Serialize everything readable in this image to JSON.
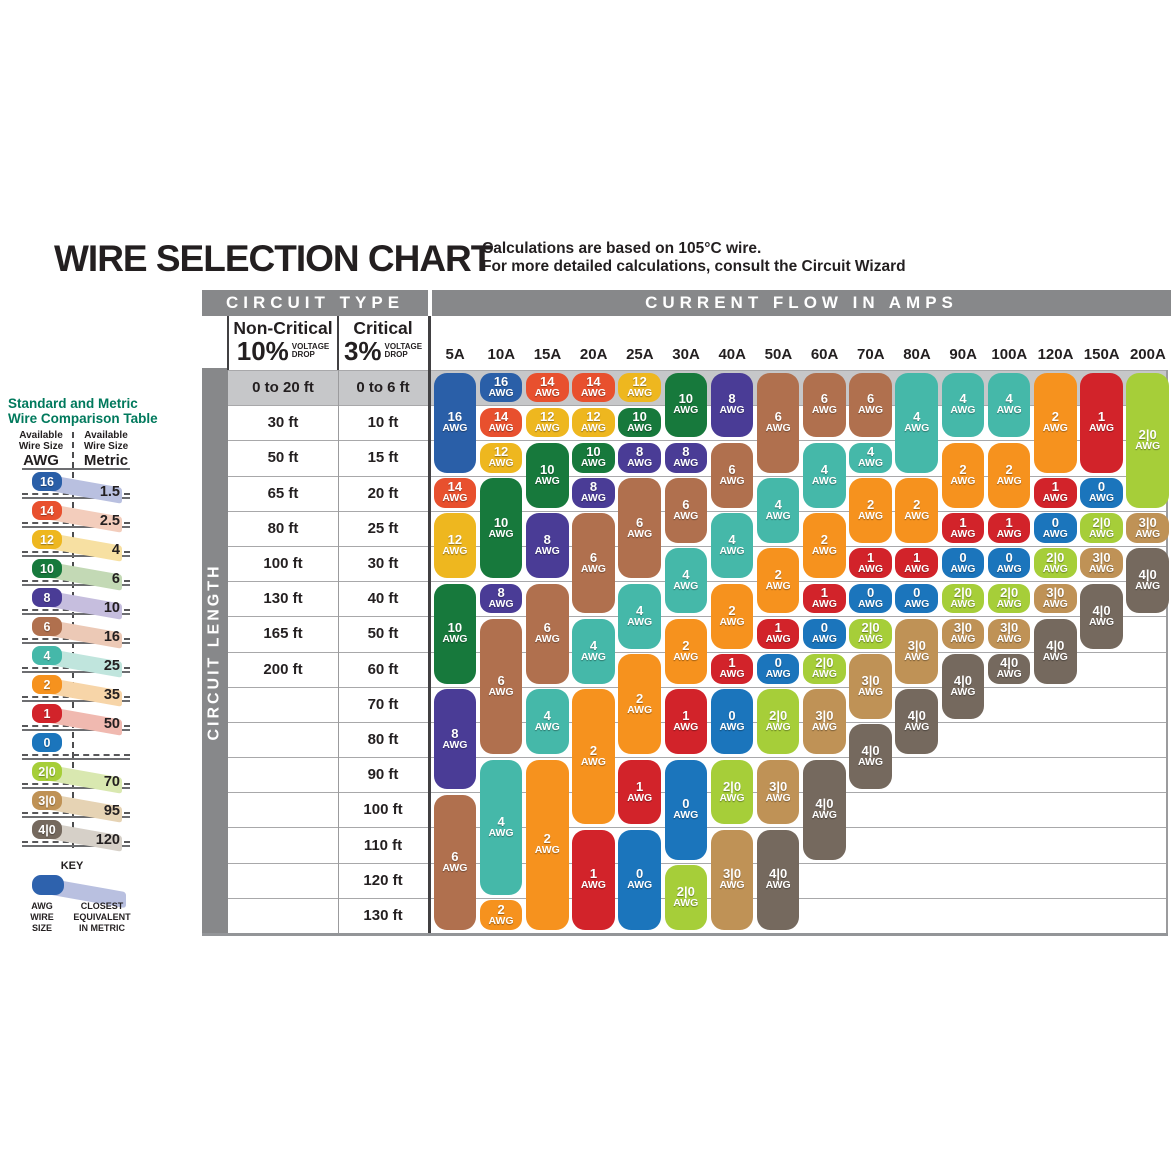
{
  "title": "WIRE SELECTION CHART",
  "subtitle_line1": "Calculations are based on 105°C wire.",
  "subtitle_line2": "For more detailed calculations, consult the Circuit Wizard",
  "headers": {
    "circuit_type": "CIRCUIT TYPE",
    "current_flow": "CURRENT FLOW IN AMPS",
    "non_critical": "Non-Critical",
    "non_critical_pct": "10%",
    "critical": "Critical",
    "critical_pct": "3%",
    "voltage_drop": [
      "VOLTAGE",
      "DROP"
    ],
    "circuit_length": "CIRCUIT LENGTH"
  },
  "colors": {
    "header_bar": "#87888a",
    "highlight_band": "#c6c7c9",
    "sidebar_title": "#00795c",
    "key_pill": "#2e62ad",
    "key_band": "#b9c0e0",
    "gauges": {
      "16": "#2a5fa8",
      "14": "#e8502e",
      "12": "#eeb71f",
      "10": "#17793c",
      "8": "#4a3c96",
      "6": "#b0704e",
      "4": "#45b8a9",
      "2": "#f6921e",
      "1": "#d2232a",
      "0": "#1b75bc",
      "2|0": "#a6ce39",
      "3|0": "#bf9256",
      "4|0": "#75695e"
    },
    "lights": {
      "16": "#b9c0e0",
      "14": "#f3cdbc",
      "12": "#f7e0a2",
      "10": "#c3d9b5",
      "8": "#c6bede",
      "6": "#ecc9b6",
      "4": "#c0e5dd",
      "2": "#f7d5a8",
      "1": "#f0b9b0",
      "2|0": "#d9e8b0",
      "3|0": "#e6d3b4",
      "4|0": "#d6d0c8"
    }
  },
  "sidebar": {
    "title_line1": "Standard and Metric",
    "title_line2": "Wire Comparison Table",
    "col1_lines": [
      "Available",
      "Wire Size"
    ],
    "col1_unit": "AWG",
    "col2_lines": [
      "Available",
      "Wire Size"
    ],
    "col2_unit": "Metric",
    "rows": [
      {
        "awg": "16",
        "metric": "1.5"
      },
      {
        "awg": "14",
        "metric": "2.5"
      },
      {
        "awg": "12",
        "metric": "4"
      },
      {
        "awg": "10",
        "metric": "6"
      },
      {
        "awg": "8",
        "metric": "10"
      },
      {
        "awg": "6",
        "metric": "16"
      },
      {
        "awg": "4",
        "metric": "25"
      },
      {
        "awg": "2",
        "metric": "35"
      },
      {
        "awg": "1",
        "metric": "50"
      },
      {
        "awg": "0",
        "metric": ""
      },
      {
        "awg": "2|0",
        "metric": "70"
      },
      {
        "awg": "3|0",
        "metric": "95"
      },
      {
        "awg": "4|0",
        "metric": "120"
      }
    ],
    "key": {
      "label": "KEY",
      "left_lines": [
        "AWG",
        "WIRE",
        "SIZE"
      ],
      "right_lines": [
        "CLOSEST",
        "EQUIVALENT",
        "IN METRIC"
      ]
    }
  },
  "chart_data": {
    "type": "table",
    "title": "WIRE SELECTION CHART",
    "xlabel": "CURRENT FLOW IN AMPS",
    "ylabel": "CIRCUIT LENGTH",
    "pill_suffix": "AWG",
    "amp_columns": [
      "5A",
      "10A",
      "15A",
      "20A",
      "25A",
      "30A",
      "40A",
      "50A",
      "60A",
      "70A",
      "80A",
      "90A",
      "100A",
      "120A",
      "150A",
      "200A"
    ],
    "rows": [
      {
        "non_critical": "0 to 20 ft",
        "critical": "0 to 6 ft",
        "highlight": true
      },
      {
        "non_critical": "30 ft",
        "critical": "10 ft"
      },
      {
        "non_critical": "50 ft",
        "critical": "15 ft"
      },
      {
        "non_critical": "65 ft",
        "critical": "20 ft"
      },
      {
        "non_critical": "80 ft",
        "critical": "25 ft"
      },
      {
        "non_critical": "100 ft",
        "critical": "30 ft"
      },
      {
        "non_critical": "130 ft",
        "critical": "40 ft"
      },
      {
        "non_critical": "165 ft",
        "critical": "50 ft"
      },
      {
        "non_critical": "200 ft",
        "critical": "60 ft"
      },
      {
        "non_critical": "",
        "critical": "70 ft"
      },
      {
        "non_critical": "",
        "critical": "80 ft"
      },
      {
        "non_critical": "",
        "critical": "90 ft"
      },
      {
        "non_critical": "",
        "critical": "100 ft"
      },
      {
        "non_critical": "",
        "critical": "110 ft"
      },
      {
        "non_critical": "",
        "critical": "120 ft"
      },
      {
        "non_critical": "",
        "critical": "130 ft"
      }
    ],
    "columns": [
      {
        "amps": "5A",
        "segments": [
          [
            "16",
            1,
            3
          ],
          [
            "14",
            4,
            4
          ],
          [
            "12",
            5,
            6
          ],
          [
            "10",
            7,
            9
          ],
          [
            "8",
            10,
            12
          ],
          [
            "6",
            13,
            16
          ]
        ]
      },
      {
        "amps": "10A",
        "segments": [
          [
            "16",
            1,
            1
          ],
          [
            "14",
            2,
            2
          ],
          [
            "12",
            3,
            3
          ],
          [
            "10",
            4,
            6
          ],
          [
            "8",
            7,
            7
          ],
          [
            "6",
            8,
            11
          ],
          [
            "4",
            12,
            15
          ],
          [
            "2",
            16,
            16
          ]
        ]
      },
      {
        "amps": "15A",
        "segments": [
          [
            "14",
            1,
            1
          ],
          [
            "12",
            2,
            2
          ],
          [
            "10",
            3,
            4
          ],
          [
            "8",
            5,
            6
          ],
          [
            "6",
            7,
            9
          ],
          [
            "4",
            10,
            11
          ],
          [
            "2",
            12,
            16
          ]
        ]
      },
      {
        "amps": "20A",
        "segments": [
          [
            "14",
            1,
            1
          ],
          [
            "12",
            2,
            2
          ],
          [
            "10",
            3,
            3
          ],
          [
            "8",
            4,
            4
          ],
          [
            "6",
            5,
            7
          ],
          [
            "4",
            8,
            9
          ],
          [
            "2",
            10,
            13
          ],
          [
            "1",
            14,
            16
          ]
        ]
      },
      {
        "amps": "25A",
        "segments": [
          [
            "12",
            1,
            1
          ],
          [
            "10",
            2,
            2
          ],
          [
            "8",
            3,
            3
          ],
          [
            "6",
            4,
            6
          ],
          [
            "4",
            7,
            8
          ],
          [
            "2",
            9,
            11
          ],
          [
            "1",
            12,
            13
          ],
          [
            "0",
            14,
            16
          ]
        ]
      },
      {
        "amps": "30A",
        "segments": [
          [
            "10",
            1,
            2
          ],
          [
            "8",
            3,
            3
          ],
          [
            "6",
            4,
            5
          ],
          [
            "4",
            6,
            7
          ],
          [
            "2",
            8,
            9
          ],
          [
            "1",
            10,
            11
          ],
          [
            "0",
            12,
            14
          ],
          [
            "2|0",
            15,
            16
          ]
        ]
      },
      {
        "amps": "40A",
        "segments": [
          [
            "8",
            1,
            2
          ],
          [
            "6",
            3,
            4
          ],
          [
            "4",
            5,
            6
          ],
          [
            "2",
            7,
            8
          ],
          [
            "1",
            9,
            9
          ],
          [
            "0",
            10,
            11
          ],
          [
            "2|0",
            12,
            13
          ],
          [
            "3|0",
            14,
            16
          ]
        ]
      },
      {
        "amps": "50A",
        "segments": [
          [
            "6",
            1,
            3
          ],
          [
            "4",
            4,
            5
          ],
          [
            "2",
            6,
            7
          ],
          [
            "1",
            8,
            8
          ],
          [
            "0",
            9,
            9
          ],
          [
            "2|0",
            10,
            11
          ],
          [
            "3|0",
            12,
            13
          ],
          [
            "4|0",
            14,
            16
          ]
        ]
      },
      {
        "amps": "60A",
        "segments": [
          [
            "6",
            1,
            2
          ],
          [
            "4",
            3,
            4
          ],
          [
            "2",
            5,
            6
          ],
          [
            "1",
            7,
            7
          ],
          [
            "0",
            8,
            8
          ],
          [
            "2|0",
            9,
            9
          ],
          [
            "3|0",
            10,
            11
          ],
          [
            "4|0",
            12,
            14
          ]
        ]
      },
      {
        "amps": "70A",
        "segments": [
          [
            "6",
            1,
            2
          ],
          [
            "4",
            3,
            3
          ],
          [
            "2",
            4,
            5
          ],
          [
            "1",
            6,
            6
          ],
          [
            "0",
            7,
            7
          ],
          [
            "2|0",
            8,
            8
          ],
          [
            "3|0",
            9,
            10
          ],
          [
            "4|0",
            11,
            12
          ]
        ]
      },
      {
        "amps": "80A",
        "segments": [
          [
            "4",
            1,
            3
          ],
          [
            "2",
            4,
            5
          ],
          [
            "1",
            6,
            6
          ],
          [
            "0",
            7,
            7
          ],
          [
            "3|0",
            8,
            9
          ],
          [
            "4|0",
            10,
            11
          ]
        ]
      },
      {
        "amps": "90A",
        "segments": [
          [
            "4",
            1,
            2
          ],
          [
            "2",
            3,
            4
          ],
          [
            "1",
            5,
            5
          ],
          [
            "0",
            6,
            6
          ],
          [
            "2|0",
            7,
            7
          ],
          [
            "3|0",
            8,
            8
          ],
          [
            "4|0",
            9,
            10
          ]
        ]
      },
      {
        "amps": "100A",
        "segments": [
          [
            "4",
            1,
            2
          ],
          [
            "2",
            3,
            4
          ],
          [
            "1",
            5,
            5
          ],
          [
            "0",
            6,
            6
          ],
          [
            "2|0",
            7,
            7
          ],
          [
            "3|0",
            8,
            8
          ],
          [
            "4|0",
            9,
            9
          ]
        ]
      },
      {
        "amps": "120A",
        "segments": [
          [
            "2",
            1,
            3
          ],
          [
            "1",
            4,
            4
          ],
          [
            "0",
            5,
            5
          ],
          [
            "2|0",
            6,
            6
          ],
          [
            "3|0",
            7,
            7
          ],
          [
            "4|0",
            8,
            9
          ]
        ]
      },
      {
        "amps": "150A",
        "segments": [
          [
            "1",
            1,
            3
          ],
          [
            "0",
            4,
            4
          ],
          [
            "2|0",
            5,
            5
          ],
          [
            "3|0",
            6,
            6
          ],
          [
            "4|0",
            7,
            8
          ]
        ]
      },
      {
        "amps": "200A",
        "segments": [
          [
            "2|0",
            1,
            4
          ],
          [
            "3|0",
            5,
            5
          ],
          [
            "4|0",
            6,
            7
          ]
        ]
      }
    ]
  }
}
